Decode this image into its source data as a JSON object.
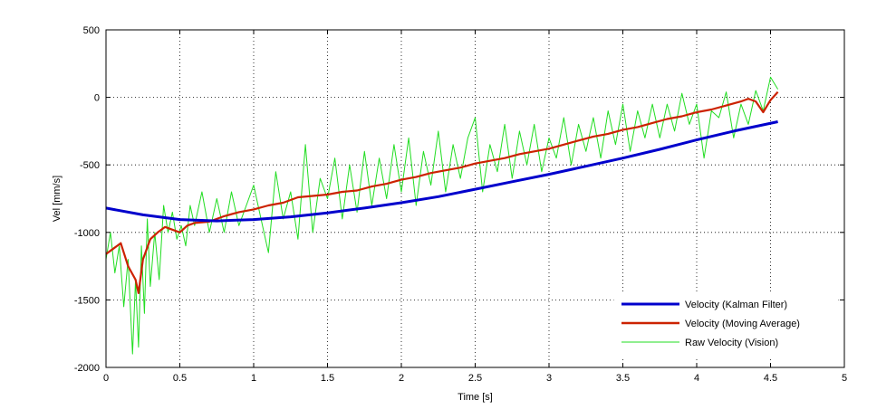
{
  "chart_data": {
    "type": "line",
    "title": "",
    "xlabel": "Time [s]",
    "ylabel": "Vel [mm/s]",
    "xlim": [
      0,
      5
    ],
    "ylim": [
      -2000,
      500
    ],
    "xticks": [
      0,
      0.5,
      1,
      1.5,
      2,
      2.5,
      3,
      3.5,
      4,
      4.5,
      5
    ],
    "xtick_labels": [
      "0",
      "0.5",
      "1",
      "1.5",
      "2",
      "2.5",
      "3",
      "3.5",
      "4",
      "4.5",
      "5"
    ],
    "yticks": [
      -2000,
      -1500,
      -1000,
      -500,
      0,
      500
    ],
    "ytick_labels": [
      "-2000",
      "-1500",
      "-1000",
      "-500",
      "0",
      "500"
    ],
    "grid": true,
    "legend_position": "bottom-right",
    "series": [
      {
        "name": "Velocity (Kalman Filter)",
        "color": "#0000cc",
        "line_style": "thick",
        "x": [
          0,
          0.25,
          0.5,
          0.75,
          1,
          1.25,
          1.5,
          1.75,
          2,
          2.25,
          2.5,
          2.75,
          3,
          3.25,
          3.5,
          3.75,
          4,
          4.25,
          4.55
        ],
        "y": [
          -820,
          -870,
          -905,
          -915,
          -905,
          -885,
          -855,
          -820,
          -780,
          -735,
          -680,
          -625,
          -570,
          -510,
          -450,
          -385,
          -315,
          -250,
          -180
        ]
      },
      {
        "name": "Velocity (Moving Average)",
        "color": "#cc2200",
        "line_style": "medium",
        "x": [
          0,
          0.05,
          0.1,
          0.15,
          0.2,
          0.22,
          0.25,
          0.3,
          0.35,
          0.4,
          0.45,
          0.5,
          0.55,
          0.6,
          0.7,
          0.8,
          0.9,
          1,
          1.1,
          1.2,
          1.3,
          1.4,
          1.5,
          1.6,
          1.7,
          1.8,
          1.9,
          2,
          2.1,
          2.2,
          2.3,
          2.4,
          2.5,
          2.6,
          2.7,
          2.8,
          2.9,
          3,
          3.1,
          3.2,
          3.3,
          3.4,
          3.5,
          3.6,
          3.7,
          3.8,
          3.9,
          4,
          4.1,
          4.2,
          4.3,
          4.35,
          4.4,
          4.45,
          4.5,
          4.55
        ],
        "y": [
          -1160,
          -1120,
          -1080,
          -1250,
          -1350,
          -1450,
          -1200,
          -1050,
          -1000,
          -960,
          -980,
          -1000,
          -950,
          -930,
          -920,
          -880,
          -850,
          -830,
          -800,
          -780,
          -740,
          -730,
          -720,
          -700,
          -690,
          -660,
          -640,
          -610,
          -590,
          -560,
          -540,
          -520,
          -490,
          -470,
          -450,
          -420,
          -400,
          -380,
          -350,
          -320,
          -290,
          -270,
          -240,
          -220,
          -190,
          -160,
          -140,
          -110,
          -90,
          -60,
          -30,
          -10,
          -30,
          -110,
          -20,
          40
        ]
      },
      {
        "name": "Raw Velocity (Vision)",
        "color": "#22dd22",
        "line_style": "thin",
        "x": [
          0,
          0.03,
          0.06,
          0.09,
          0.12,
          0.15,
          0.18,
          0.2,
          0.22,
          0.24,
          0.26,
          0.28,
          0.3,
          0.33,
          0.36,
          0.39,
          0.42,
          0.45,
          0.48,
          0.51,
          0.54,
          0.57,
          0.6,
          0.65,
          0.7,
          0.75,
          0.8,
          0.85,
          0.9,
          0.95,
          1,
          1.05,
          1.1,
          1.15,
          1.2,
          1.25,
          1.3,
          1.35,
          1.4,
          1.45,
          1.5,
          1.55,
          1.6,
          1.65,
          1.7,
          1.75,
          1.8,
          1.85,
          1.9,
          1.95,
          2,
          2.05,
          2.1,
          2.15,
          2.2,
          2.25,
          2.3,
          2.35,
          2.4,
          2.45,
          2.5,
          2.55,
          2.6,
          2.65,
          2.7,
          2.75,
          2.8,
          2.85,
          2.9,
          2.95,
          3,
          3.05,
          3.1,
          3.15,
          3.2,
          3.25,
          3.3,
          3.35,
          3.4,
          3.45,
          3.5,
          3.55,
          3.6,
          3.65,
          3.7,
          3.75,
          3.8,
          3.85,
          3.9,
          3.95,
          4,
          4.05,
          4.1,
          4.15,
          4.2,
          4.25,
          4.3,
          4.35,
          4.4,
          4.45,
          4.5,
          4.55
        ],
        "y": [
          -1200,
          -1000,
          -1300,
          -1100,
          -1550,
          -1200,
          -1900,
          -1350,
          -1850,
          -1100,
          -1600,
          -900,
          -1400,
          -1000,
          -1350,
          -800,
          -1000,
          -850,
          -1050,
          -950,
          -1100,
          -800,
          -950,
          -700,
          -1000,
          -750,
          -1000,
          -700,
          -950,
          -800,
          -650,
          -900,
          -1150,
          -550,
          -900,
          -700,
          -1050,
          -350,
          -1000,
          -600,
          -750,
          -450,
          -900,
          -500,
          -850,
          -400,
          -800,
          -450,
          -750,
          -350,
          -700,
          -300,
          -800,
          -400,
          -650,
          -250,
          -700,
          -350,
          -600,
          -300,
          -150,
          -700,
          -350,
          -550,
          -200,
          -600,
          -250,
          -500,
          -200,
          -550,
          -300,
          -450,
          -150,
          -500,
          -200,
          -400,
          -150,
          -450,
          -100,
          -350,
          -50,
          -400,
          -100,
          -300,
          -50,
          -300,
          -50,
          -250,
          30,
          -200,
          -50,
          -450,
          -100,
          -150,
          40,
          -300,
          -50,
          -200,
          50,
          -100,
          150,
          60
        ]
      }
    ]
  }
}
